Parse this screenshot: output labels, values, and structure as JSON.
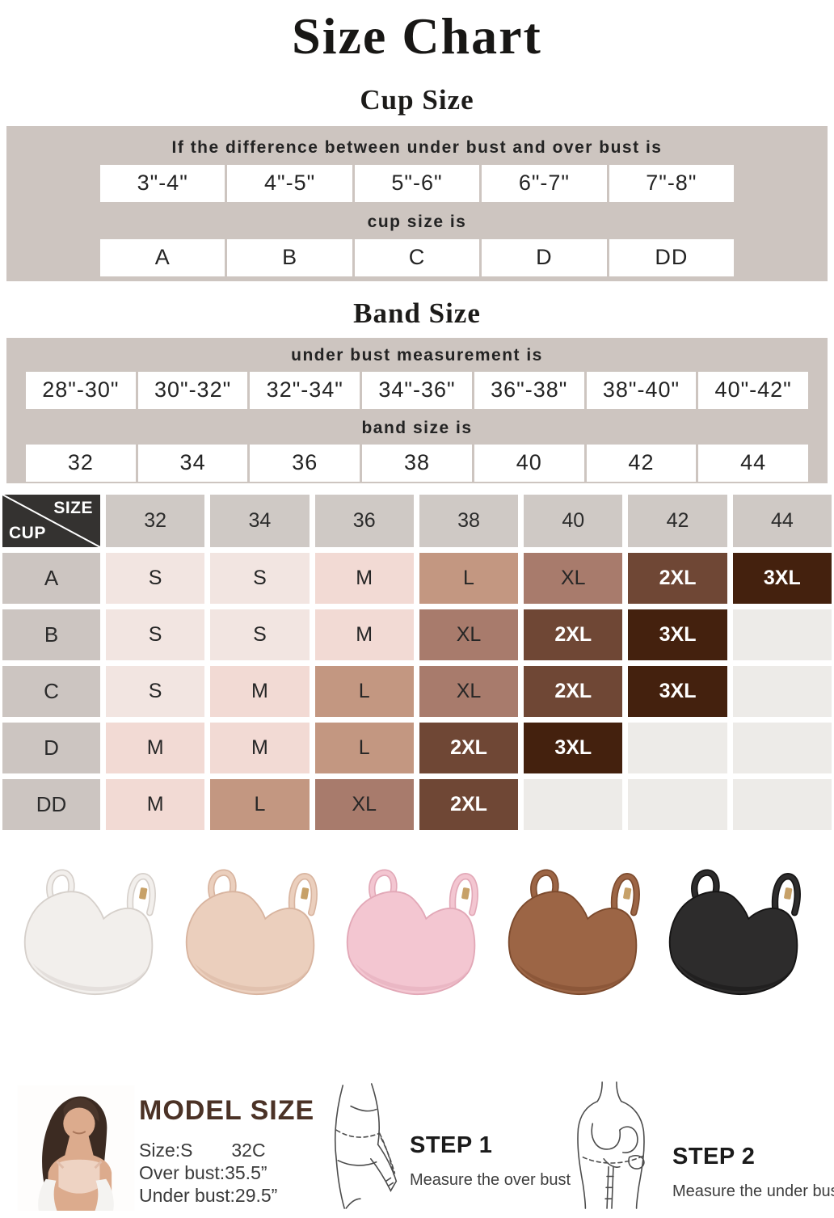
{
  "title": "Size Chart",
  "cup_section": {
    "heading": "Cup Size",
    "condition_label": "If the difference between under bust and over bust is",
    "differences": [
      "3\"-4\"",
      "4\"-5\"",
      "5\"-6\"",
      "6\"-7\"",
      "7\"-8\""
    ],
    "result_label": "cup size is",
    "cups": [
      "A",
      "B",
      "C",
      "D",
      "DD"
    ]
  },
  "band_section": {
    "heading": "Band Size",
    "condition_label": "under bust measurement is",
    "measurements": [
      "28\"-30\"",
      "30\"-32\"",
      "32\"-34\"",
      "34\"-36\"",
      "36\"-38\"",
      "38\"-40\"",
      "40\"-42\""
    ],
    "result_label": "band size is",
    "bands": [
      "32",
      "34",
      "36",
      "38",
      "40",
      "42",
      "44"
    ]
  },
  "matrix": {
    "corner": {
      "top": "SIZE",
      "bottom": "CUP"
    },
    "columns": [
      "32",
      "34",
      "36",
      "38",
      "40",
      "42",
      "44"
    ],
    "rows": [
      {
        "cup": "A",
        "cells": [
          "S",
          "S",
          "M",
          "L",
          "XL",
          "2XL",
          "3XL"
        ]
      },
      {
        "cup": "B",
        "cells": [
          "S",
          "S",
          "M",
          "XL",
          "2XL",
          "3XL",
          ""
        ]
      },
      {
        "cup": "C",
        "cells": [
          "S",
          "M",
          "L",
          "XL",
          "2XL",
          "3XL",
          ""
        ]
      },
      {
        "cup": "D",
        "cells": [
          "M",
          "M",
          "L",
          "2XL",
          "3XL",
          "",
          ""
        ]
      },
      {
        "cup": "DD",
        "cells": [
          "M",
          "L",
          "XL",
          "2XL",
          "",
          "",
          ""
        ]
      }
    ],
    "size_colors": {
      "S": {
        "bg": "#f2e5e1",
        "fg": "#262626"
      },
      "M": {
        "bg": "#f2dad4",
        "fg": "#262626"
      },
      "L": {
        "bg": "#c39781",
        "fg": "#262626"
      },
      "XL": {
        "bg": "#a87b6c",
        "fg": "#262626"
      },
      "2XL": {
        "bg": "#6f4735",
        "fg": "#ffffff"
      },
      "3XL": {
        "bg": "#44210e",
        "fg": "#ffffff"
      },
      "empty": {
        "bg": "#edebe8",
        "fg": "#262626"
      }
    }
  },
  "theme": {
    "table_bg": "#cdc5c0",
    "header_cell_bg": "#cfc9c5",
    "label_cell_bg": "#ccc5c1",
    "corner_bg": "#343230",
    "model_heading_color": "#4b3226"
  },
  "products": [
    {
      "name": "white",
      "color": "#f2efec",
      "outline": "#d6d0cb"
    },
    {
      "name": "beige",
      "color": "#ebcfbd",
      "outline": "#d8b49f"
    },
    {
      "name": "pink",
      "color": "#f3c6d1",
      "outline": "#e2a8b7"
    },
    {
      "name": "brown",
      "color": "#9c6545",
      "outline": "#7c4a2d"
    },
    {
      "name": "black",
      "color": "#2d2c2c",
      "outline": "#151414"
    }
  ],
  "model_info": {
    "heading": "MODEL SIZE",
    "size_label": "Size:S",
    "cup_value": "32C",
    "over_bust": "Over bust:35.5”",
    "under_bust": "Under bust:29.5”"
  },
  "steps": [
    {
      "label": "STEP 1",
      "caption": "Measure the over bust"
    },
    {
      "label": "STEP 2",
      "caption": "Measure the under bust"
    }
  ]
}
